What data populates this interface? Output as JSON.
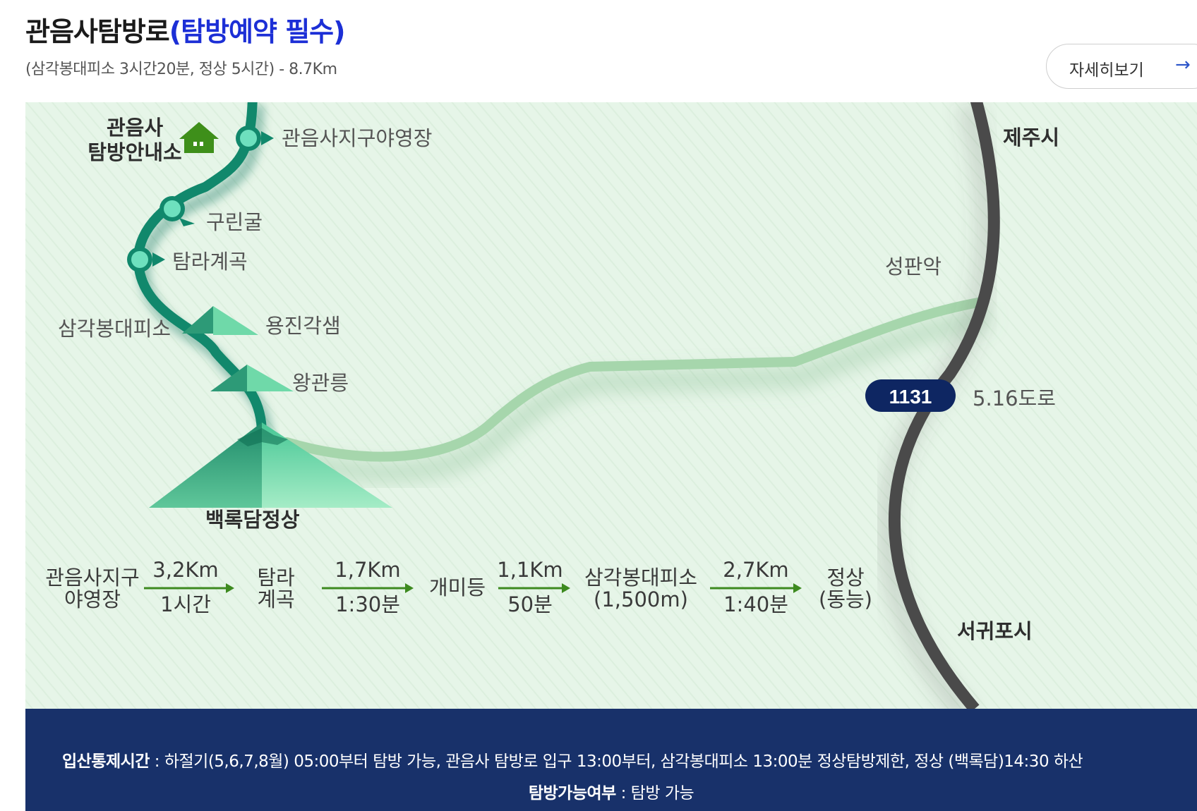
{
  "title": {
    "main": "관음사탐방로",
    "accent": "(탐방예약 필수)"
  },
  "subtitle": "(삼각봉대피소 3시간20분, 정상 5시간) - 8.7Km",
  "detail_button": {
    "label": "자세히보기",
    "icon": "arrow-right-icon"
  },
  "map": {
    "colors": {
      "background": "#e6f5e8",
      "main_trail": "#11886c",
      "side_trail": "#a6d6ac",
      "road": "#4a4a4a",
      "road_badge": "#0e2662",
      "waypoint": "#6ee0be"
    },
    "info_center": {
      "line1": "관음사",
      "line2": "탐방안내소",
      "icon": "house-icon"
    },
    "waypoints": {
      "campground": "관음사지구야영장",
      "gurin_cave": "구린굴",
      "tamra_valley": "탐라계곡",
      "shelter": "삼각봉대피소",
      "yongjin": "용진각샘",
      "wanggwan": "왕관릉",
      "summit": "백록담정상",
      "seongpanak": "성판악"
    },
    "road": {
      "number": "1131",
      "name": "5.16도로",
      "north_city": "제주시",
      "south_city": "서귀포시"
    }
  },
  "route": {
    "stops": [
      {
        "line1": "관음사지구",
        "line2": "야영장"
      },
      {
        "line1": "탐라",
        "line2": "계곡"
      },
      {
        "line1": "개미등",
        "line2": ""
      },
      {
        "line1": "삼각봉대피소",
        "line2": "(1,500m)"
      },
      {
        "line1": "정상",
        "line2": "(동능)"
      }
    ],
    "segments": [
      {
        "distance": "3,2Km",
        "time": "1시간"
      },
      {
        "distance": "1,7Km",
        "time": "1:30분"
      },
      {
        "distance": "1,1Km",
        "time": "50분"
      },
      {
        "distance": "2,7Km",
        "time": "1:40분"
      }
    ],
    "arrow_color": "#3d8a1f"
  },
  "info": {
    "control_label": "입산통제시간",
    "control_text": " : 하절기(5,6,7,8월) 05:00부터 탐방 가능, 관음사 탐방로 입구 13:00부터, 삼각봉대피소 13:00분 정상탐방제한, 정상 (백록담)14:30 하산",
    "status_label": "탐방가능여부",
    "status_text": " : 탐방 가능"
  }
}
